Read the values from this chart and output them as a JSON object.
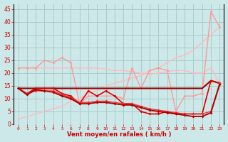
{
  "xlabel": "Vent moyen/en rafales ( km/h )",
  "bg_color": "#cce8e8",
  "grid_color": "#aacccc",
  "ylim": [
    0,
    47
  ],
  "xlim": [
    -0.5,
    23.5
  ],
  "yticks": [
    0,
    5,
    10,
    15,
    20,
    25,
    30,
    35,
    40,
    45
  ],
  "xticks": [
    0,
    1,
    2,
    3,
    4,
    5,
    6,
    7,
    8,
    9,
    10,
    11,
    12,
    13,
    14,
    15,
    16,
    17,
    18,
    19,
    20,
    21,
    22,
    23
  ],
  "series": [
    {
      "x": [
        0,
        1,
        2,
        3,
        4,
        5,
        6,
        7,
        8,
        9,
        10,
        11,
        12,
        13,
        14,
        15,
        16,
        17,
        18,
        19,
        20,
        21,
        22,
        23
      ],
      "y": [
        22,
        22,
        22,
        22,
        22,
        22,
        22,
        22,
        22,
        22,
        21.5,
        21,
        21,
        20.5,
        20,
        19.5,
        20,
        20.5,
        21,
        21,
        20,
        20,
        22,
        16
      ],
      "color": "#ffbbbb",
      "lw": 1.0,
      "marker": "o",
      "ms": 2.0,
      "zorder": 2
    },
    {
      "x": [
        0,
        1,
        2,
        3,
        4,
        5,
        6,
        7,
        8,
        9,
        10,
        11,
        12,
        13,
        14,
        15,
        16,
        17,
        18,
        19,
        20,
        21,
        22,
        23
      ],
      "y": [
        2,
        3,
        4,
        5,
        6,
        7,
        9,
        10,
        12,
        13,
        15,
        16,
        17,
        18,
        19,
        21,
        22,
        24,
        26,
        27,
        29,
        32,
        35,
        38
      ],
      "color": "#ffbbbb",
      "lw": 1.0,
      "marker": null,
      "ms": 0,
      "zorder": 2
    },
    {
      "x": [
        0,
        1,
        2,
        3,
        4,
        5,
        6,
        7,
        8,
        9,
        10,
        11,
        12,
        13,
        14,
        15,
        16,
        17,
        18,
        19,
        20,
        21,
        22,
        23
      ],
      "y": [
        22,
        22,
        22,
        25,
        24,
        26,
        24,
        8,
        11,
        11,
        11,
        11,
        10,
        22,
        14,
        21,
        22,
        21,
        5,
        11,
        11,
        12,
        44,
        38
      ],
      "color": "#ff9999",
      "lw": 1.0,
      "marker": "D",
      "ms": 2.0,
      "zorder": 3
    },
    {
      "x": [
        0,
        1,
        2,
        3,
        4,
        5,
        6,
        7,
        8,
        9,
        10,
        11,
        12,
        13,
        14,
        15,
        16,
        17,
        18,
        19,
        20,
        21,
        22,
        23
      ],
      "y": [
        14,
        14,
        14,
        14,
        14,
        14,
        14,
        14,
        14,
        14,
        14,
        14,
        14,
        14,
        14,
        14,
        14,
        14,
        14,
        14,
        14,
        14,
        17,
        16
      ],
      "color": "#990000",
      "lw": 1.5,
      "marker": null,
      "ms": 0,
      "zorder": 4
    },
    {
      "x": [
        0,
        1,
        2,
        3,
        4,
        5,
        6,
        7,
        8,
        9,
        10,
        11,
        12,
        13,
        14,
        15,
        16,
        17,
        18,
        19,
        20,
        21,
        22,
        23
      ],
      "y": [
        14,
        12,
        14,
        14,
        14,
        12,
        11,
        8,
        13,
        11,
        13,
        11,
        8,
        8,
        5,
        4,
        4,
        5,
        4,
        4,
        4,
        4,
        17,
        16
      ],
      "color": "#dd0000",
      "lw": 1.2,
      "marker": "D",
      "ms": 2.0,
      "zorder": 5
    },
    {
      "x": [
        0,
        1,
        2,
        3,
        4,
        5,
        6,
        7,
        8,
        9,
        10,
        11,
        12,
        13,
        14,
        15,
        16,
        17,
        18,
        19,
        20,
        21,
        22,
        23
      ],
      "y": [
        14,
        12,
        13,
        13,
        13,
        11.5,
        10.5,
        8.5,
        8.5,
        9,
        9,
        8.5,
        8,
        8,
        7,
        6,
        5.5,
        5,
        4.5,
        4,
        4,
        4,
        5,
        16
      ],
      "color": "#ee3333",
      "lw": 1.0,
      "marker": "D",
      "ms": 2.0,
      "zorder": 5
    },
    {
      "x": [
        0,
        1,
        2,
        3,
        4,
        5,
        6,
        7,
        8,
        9,
        10,
        11,
        12,
        13,
        14,
        15,
        16,
        17,
        18,
        19,
        20,
        21,
        22,
        23
      ],
      "y": [
        14,
        11.5,
        13.5,
        13,
        12.5,
        11,
        10,
        8,
        8,
        8.5,
        8.5,
        8,
        7.5,
        7.5,
        6.5,
        5.5,
        5,
        4.5,
        4,
        3.5,
        3,
        3,
        4.5,
        15.5
      ],
      "color": "#aa0000",
      "lw": 1.3,
      "marker": "D",
      "ms": 2.0,
      "zorder": 5
    }
  ]
}
